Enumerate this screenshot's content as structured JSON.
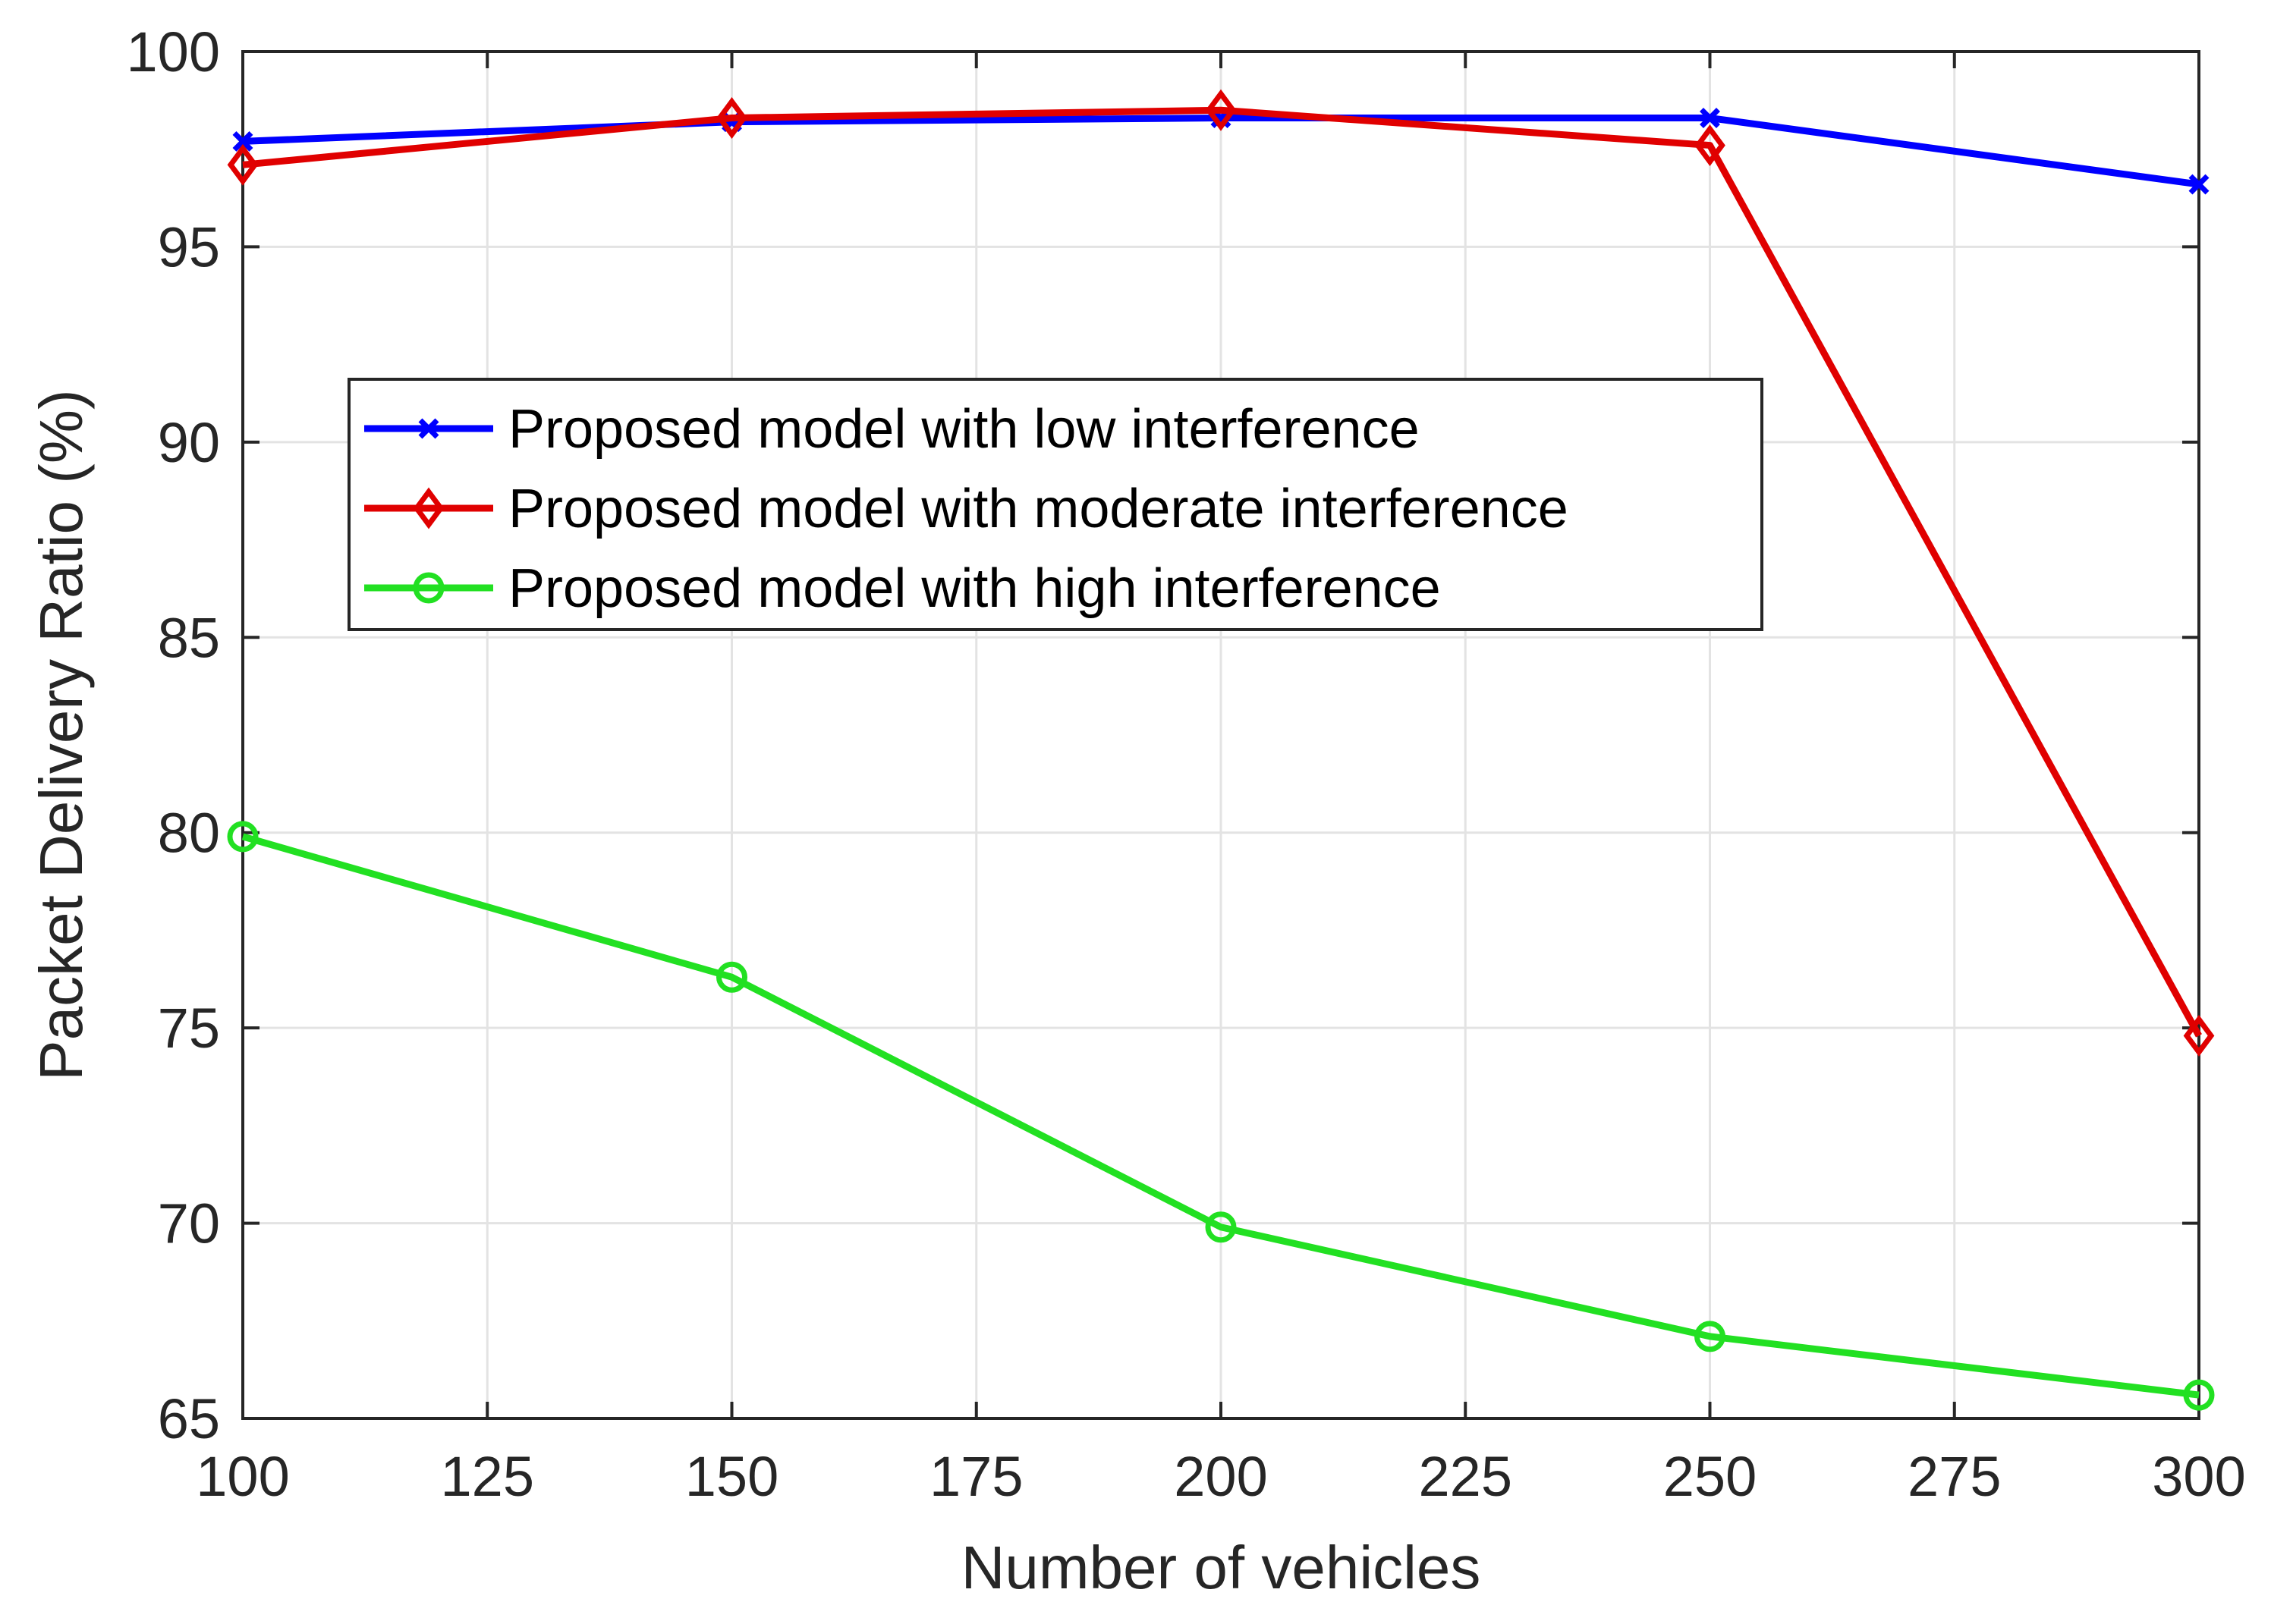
{
  "chart_data": {
    "type": "line",
    "title": "",
    "xlabel": "Number of vehicles",
    "ylabel": "Packet Delivery Ratio  (%)",
    "xlim": [
      100,
      300
    ],
    "ylim": [
      65,
      100
    ],
    "xticks": [
      100,
      125,
      150,
      175,
      200,
      225,
      250,
      275,
      300
    ],
    "yticks": [
      65,
      70,
      75,
      80,
      85,
      90,
      95,
      100
    ],
    "grid": true,
    "legend_position": "upper-left-center",
    "x": [
      100,
      150,
      200,
      250,
      300
    ],
    "series": [
      {
        "name": "Proposed model with low interference",
        "color": "#0000ff",
        "marker": "x",
        "values": [
          97.7,
          98.2,
          98.3,
          98.3,
          96.6
        ]
      },
      {
        "name": "Proposed model with moderate interference",
        "color": "#e00000",
        "marker": "diamond",
        "values": [
          97.1,
          98.3,
          98.5,
          97.6,
          74.8
        ]
      },
      {
        "name": "Proposed model with high interference",
        "color": "#22e022",
        "marker": "circle",
        "values": [
          79.9,
          76.3,
          69.9,
          67.1,
          65.6
        ]
      }
    ]
  }
}
